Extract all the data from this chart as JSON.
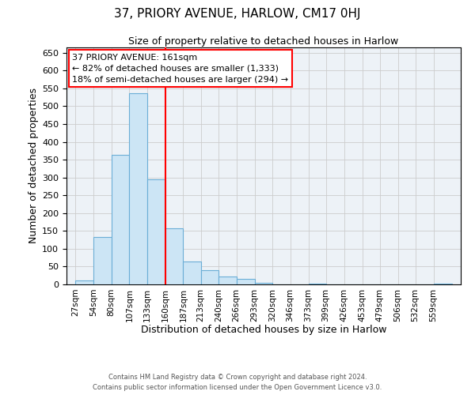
{
  "title": "37, PRIORY AVENUE, HARLOW, CM17 0HJ",
  "subtitle": "Size of property relative to detached houses in Harlow",
  "xlabel": "Distribution of detached houses by size in Harlow",
  "ylabel": "Number of detached properties",
  "bin_labels": [
    "27sqm",
    "54sqm",
    "80sqm",
    "107sqm",
    "133sqm",
    "160sqm",
    "187sqm",
    "213sqm",
    "240sqm",
    "266sqm",
    "293sqm",
    "320sqm",
    "346sqm",
    "373sqm",
    "399sqm",
    "426sqm",
    "453sqm",
    "479sqm",
    "506sqm",
    "532sqm",
    "559sqm"
  ],
  "bin_left_edges": [
    27,
    54,
    80,
    107,
    133,
    160,
    187,
    213,
    240,
    266,
    293,
    320,
    346,
    373,
    399,
    426,
    453,
    479,
    506,
    532,
    559
  ],
  "bin_width": 27,
  "bar_heights": [
    10,
    133,
    363,
    537,
    295,
    157,
    65,
    40,
    22,
    15,
    5,
    0,
    0,
    2,
    0,
    0,
    0,
    0,
    0,
    0,
    2
  ],
  "bar_fill_color": "#cce5f5",
  "bar_edge_color": "#6baed6",
  "property_line_x": 161,
  "property_line_color": "red",
  "annotation_text": "37 PRIORY AVENUE: 161sqm\n← 82% of detached houses are smaller (1,333)\n18% of semi-detached houses are larger (294) →",
  "annotation_box_color": "white",
  "annotation_box_edge_color": "red",
  "ylim": [
    0,
    665
  ],
  "yticks": [
    0,
    50,
    100,
    150,
    200,
    250,
    300,
    350,
    400,
    450,
    500,
    550,
    600,
    650
  ],
  "grid_color": "#cccccc",
  "background_color": "#edf2f7",
  "footer_line1": "Contains HM Land Registry data © Crown copyright and database right 2024.",
  "footer_line2": "Contains public sector information licensed under the Open Government Licence v3.0."
}
